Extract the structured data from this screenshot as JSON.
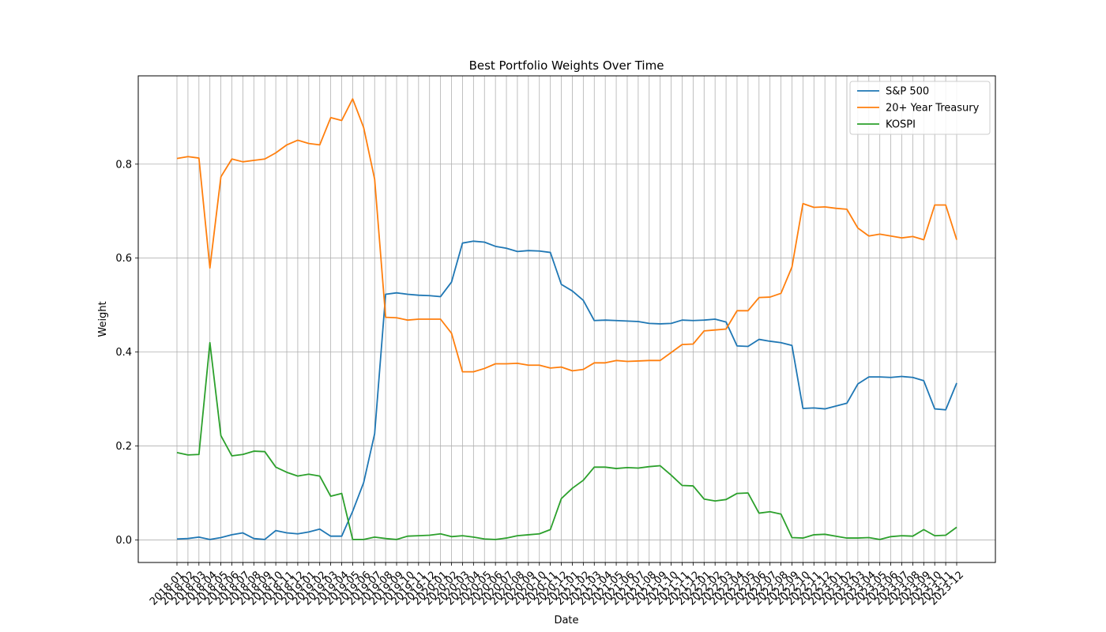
{
  "chart_data": {
    "type": "line",
    "title": "Best Portfolio Weights Over Time",
    "xlabel": "Date",
    "ylabel": "Weight",
    "ylim": [
      -0.048,
      0.988
    ],
    "yticks": [
      0.0,
      0.2,
      0.4,
      0.6,
      0.8
    ],
    "ytick_labels": [
      "0.0",
      "0.2",
      "0.4",
      "0.6",
      "0.8"
    ],
    "grid": true,
    "legend_position": "top-right",
    "x": [
      "2018-01",
      "2018-02",
      "2018-03",
      "2018-04",
      "2018-05",
      "2018-06",
      "2018-07",
      "2018-08",
      "2018-09",
      "2018-10",
      "2018-11",
      "2018-12",
      "2019-01",
      "2019-02",
      "2019-03",
      "2019-04",
      "2019-05",
      "2019-06",
      "2019-07",
      "2019-08",
      "2019-09",
      "2019-10",
      "2019-11",
      "2019-12",
      "2020-01",
      "2020-02",
      "2020-03",
      "2020-04",
      "2020-05",
      "2020-06",
      "2020-07",
      "2020-08",
      "2020-09",
      "2020-10",
      "2020-11",
      "2020-12",
      "2021-01",
      "2021-02",
      "2021-03",
      "2021-04",
      "2021-05",
      "2021-06",
      "2021-07",
      "2021-08",
      "2021-09",
      "2021-10",
      "2021-11",
      "2021-12",
      "2022-01",
      "2022-02",
      "2022-03",
      "2022-04",
      "2022-05",
      "2022-06",
      "2022-07",
      "2022-08",
      "2022-09",
      "2022-10",
      "2022-11",
      "2022-12",
      "2023-01",
      "2023-02",
      "2023-03",
      "2023-04",
      "2023-05",
      "2023-06",
      "2023-07",
      "2023-08",
      "2023-09",
      "2023-10",
      "2023-11",
      "2023-12"
    ],
    "series": [
      {
        "name": "S&P 500",
        "color": "#1f77b4",
        "values": [
          0.002,
          0.003,
          0.006,
          0.001,
          0.005,
          0.011,
          0.015,
          0.003,
          0.001,
          0.02,
          0.015,
          0.013,
          0.017,
          0.023,
          0.008,
          0.008,
          0.061,
          0.122,
          0.226,
          0.523,
          0.526,
          0.523,
          0.521,
          0.52,
          0.518,
          0.549,
          0.632,
          0.636,
          0.634,
          0.625,
          0.621,
          0.614,
          0.616,
          0.615,
          0.612,
          0.544,
          0.53,
          0.51,
          0.467,
          0.468,
          0.467,
          0.466,
          0.465,
          0.461,
          0.46,
          0.461,
          0.468,
          0.467,
          0.468,
          0.47,
          0.464,
          0.413,
          0.412,
          0.427,
          0.423,
          0.42,
          0.414,
          0.28,
          0.281,
          0.279,
          0.285,
          0.291,
          0.332,
          0.347,
          0.347,
          0.346,
          0.348,
          0.346,
          0.339,
          0.279,
          0.277,
          0.334
        ]
      },
      {
        "name": "20+ Year Treasury",
        "color": "#ff7f0e",
        "values": [
          0.812,
          0.816,
          0.813,
          0.579,
          0.773,
          0.811,
          0.805,
          0.808,
          0.811,
          0.824,
          0.841,
          0.851,
          0.844,
          0.841,
          0.899,
          0.893,
          0.939,
          0.878,
          0.768,
          0.474,
          0.473,
          0.468,
          0.47,
          0.47,
          0.47,
          0.44,
          0.358,
          0.358,
          0.365,
          0.375,
          0.375,
          0.376,
          0.372,
          0.372,
          0.366,
          0.368,
          0.36,
          0.363,
          0.377,
          0.377,
          0.382,
          0.38,
          0.381,
          0.382,
          0.382,
          0.399,
          0.416,
          0.417,
          0.445,
          0.447,
          0.449,
          0.488,
          0.488,
          0.516,
          0.517,
          0.525,
          0.581,
          0.716,
          0.708,
          0.709,
          0.706,
          0.704,
          0.664,
          0.647,
          0.651,
          0.647,
          0.643,
          0.646,
          0.639,
          0.713,
          0.713,
          0.639
        ]
      },
      {
        "name": "KOSPI",
        "color": "#2ca02c",
        "values": [
          0.186,
          0.181,
          0.182,
          0.42,
          0.222,
          0.179,
          0.182,
          0.189,
          0.188,
          0.155,
          0.144,
          0.136,
          0.14,
          0.136,
          0.093,
          0.099,
          0.001,
          0.001,
          0.006,
          0.003,
          0.001,
          0.008,
          0.009,
          0.01,
          0.013,
          0.007,
          0.009,
          0.006,
          0.002,
          0.001,
          0.004,
          0.009,
          0.011,
          0.013,
          0.022,
          0.088,
          0.11,
          0.127,
          0.155,
          0.155,
          0.152,
          0.154,
          0.153,
          0.156,
          0.158,
          0.138,
          0.116,
          0.115,
          0.087,
          0.083,
          0.086,
          0.099,
          0.1,
          0.057,
          0.06,
          0.055,
          0.005,
          0.004,
          0.011,
          0.012,
          0.008,
          0.004,
          0.004,
          0.005,
          0.001,
          0.007,
          0.009,
          0.008,
          0.022,
          0.009,
          0.01,
          0.027
        ]
      }
    ]
  }
}
